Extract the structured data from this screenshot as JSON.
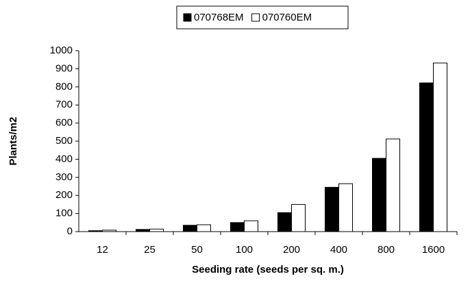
{
  "chart_data": {
    "type": "bar",
    "x_label": "Seeding rate (seeds per sq. m.)",
    "y_label": "Plants/m2",
    "categories": [
      "12",
      "25",
      "50",
      "100",
      "200",
      "400",
      "800",
      "1600"
    ],
    "series": [
      {
        "name": "070768EM",
        "color": "#000000",
        "values": [
          5,
          12,
          35,
          50,
          105,
          245,
          405,
          822
        ]
      },
      {
        "name": "070760EM",
        "color": "#ffffff",
        "values": [
          8,
          14,
          38,
          60,
          150,
          265,
          512,
          932
        ]
      }
    ],
    "ylim": [
      0,
      1000
    ],
    "yticks": [
      0,
      100,
      200,
      300,
      400,
      500,
      600,
      700,
      800,
      900,
      1000
    ],
    "grid": false,
    "legend": "top"
  }
}
